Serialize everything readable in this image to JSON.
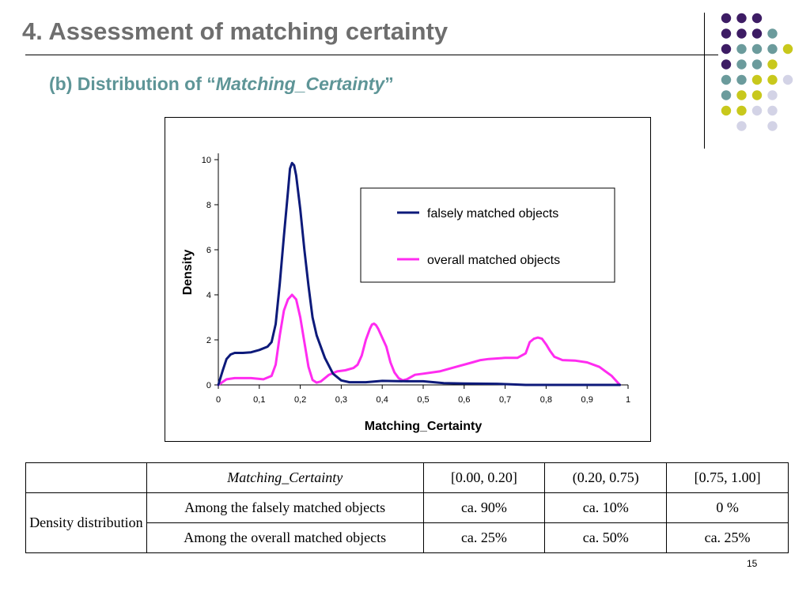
{
  "slide": {
    "title": "4. Assessment of matching certainty",
    "subtitle_prefix": "(b) Distribution of “",
    "subtitle_emphasis": "Matching_Certainty",
    "subtitle_suffix": "”",
    "page_number": "15"
  },
  "decoration": {
    "dot_colors": {
      "purple": "#3d1c64",
      "teal": "#6b9b9c",
      "yellow": "#c8c81c",
      "lavender": "#d3d3e6"
    },
    "dot_rows": [
      [
        "purple",
        "purple",
        "purple",
        "",
        ""
      ],
      [
        "purple",
        "purple",
        "purple",
        "teal",
        ""
      ],
      [
        "purple",
        "teal",
        "teal",
        "teal",
        "yellow"
      ],
      [
        "purple",
        "teal",
        "teal",
        "yellow",
        ""
      ],
      [
        "teal",
        "teal",
        "yellow",
        "yellow",
        "lavender"
      ],
      [
        "teal",
        "yellow",
        "yellow",
        "lavender",
        ""
      ],
      [
        "yellow",
        "yellow",
        "lavender",
        "lavender",
        ""
      ],
      [
        "",
        "lavender",
        "",
        "lavender",
        ""
      ]
    ]
  },
  "chart_data": {
    "type": "line",
    "title": "",
    "xlabel": "Matching_Certainty",
    "ylabel": "Density",
    "xlim": [
      0,
      1
    ],
    "ylim": [
      0,
      10
    ],
    "x_ticks": [
      0,
      0.1,
      0.2,
      0.3,
      0.4,
      0.5,
      0.6,
      0.7,
      0.8,
      0.9,
      1
    ],
    "x_tick_labels": [
      "0",
      "0,1",
      "0,2",
      "0,3",
      "0,4",
      "0,5",
      "0,6",
      "0,7",
      "0,8",
      "0,9",
      "1"
    ],
    "y_ticks": [
      0,
      2,
      4,
      6,
      8,
      10
    ],
    "y_tick_labels": [
      "0",
      "2",
      "4",
      "6",
      "8",
      "10"
    ],
    "grid": false,
    "legend_position": "top-right",
    "series": [
      {
        "name": "falsely matched objects",
        "color": "#0d1a7a",
        "points": [
          [
            0,
            0
          ],
          [
            0.01,
            0.6
          ],
          [
            0.02,
            1.15
          ],
          [
            0.03,
            1.35
          ],
          [
            0.04,
            1.42
          ],
          [
            0.06,
            1.42
          ],
          [
            0.08,
            1.45
          ],
          [
            0.1,
            1.55
          ],
          [
            0.12,
            1.7
          ],
          [
            0.13,
            1.9
          ],
          [
            0.14,
            2.7
          ],
          [
            0.15,
            4.5
          ],
          [
            0.16,
            6.6
          ],
          [
            0.17,
            8.6
          ],
          [
            0.175,
            9.6
          ],
          [
            0.18,
            9.85
          ],
          [
            0.185,
            9.75
          ],
          [
            0.19,
            9.3
          ],
          [
            0.2,
            7.8
          ],
          [
            0.21,
            6.0
          ],
          [
            0.22,
            4.4
          ],
          [
            0.23,
            3.0
          ],
          [
            0.24,
            2.2
          ],
          [
            0.26,
            1.2
          ],
          [
            0.28,
            0.5
          ],
          [
            0.3,
            0.2
          ],
          [
            0.32,
            0.12
          ],
          [
            0.36,
            0.12
          ],
          [
            0.4,
            0.18
          ],
          [
            0.46,
            0.16
          ],
          [
            0.5,
            0.16
          ],
          [
            0.55,
            0.08
          ],
          [
            0.6,
            0.06
          ],
          [
            0.68,
            0.05
          ],
          [
            0.72,
            0.02
          ],
          [
            0.75,
            0.0
          ],
          [
            0.98,
            0.0
          ]
        ]
      },
      {
        "name": "overall matched objects",
        "color": "#ff2cf0",
        "points": [
          [
            0,
            0
          ],
          [
            0.02,
            0.25
          ],
          [
            0.04,
            0.3
          ],
          [
            0.08,
            0.3
          ],
          [
            0.11,
            0.25
          ],
          [
            0.13,
            0.4
          ],
          [
            0.14,
            0.9
          ],
          [
            0.15,
            2.2
          ],
          [
            0.16,
            3.3
          ],
          [
            0.17,
            3.8
          ],
          [
            0.18,
            4.0
          ],
          [
            0.19,
            3.8
          ],
          [
            0.2,
            3.0
          ],
          [
            0.21,
            1.9
          ],
          [
            0.22,
            0.8
          ],
          [
            0.23,
            0.22
          ],
          [
            0.24,
            0.1
          ],
          [
            0.25,
            0.15
          ],
          [
            0.27,
            0.45
          ],
          [
            0.29,
            0.6
          ],
          [
            0.31,
            0.65
          ],
          [
            0.33,
            0.75
          ],
          [
            0.34,
            0.9
          ],
          [
            0.35,
            1.3
          ],
          [
            0.36,
            2.0
          ],
          [
            0.37,
            2.5
          ],
          [
            0.375,
            2.68
          ],
          [
            0.38,
            2.72
          ],
          [
            0.385,
            2.65
          ],
          [
            0.39,
            2.5
          ],
          [
            0.41,
            1.7
          ],
          [
            0.42,
            1.0
          ],
          [
            0.43,
            0.55
          ],
          [
            0.44,
            0.3
          ],
          [
            0.45,
            0.2
          ],
          [
            0.46,
            0.25
          ],
          [
            0.48,
            0.45
          ],
          [
            0.5,
            0.5
          ],
          [
            0.54,
            0.6
          ],
          [
            0.58,
            0.8
          ],
          [
            0.62,
            1.0
          ],
          [
            0.64,
            1.1
          ],
          [
            0.66,
            1.15
          ],
          [
            0.7,
            1.2
          ],
          [
            0.73,
            1.2
          ],
          [
            0.75,
            1.4
          ],
          [
            0.76,
            1.9
          ],
          [
            0.77,
            2.05
          ],
          [
            0.78,
            2.1
          ],
          [
            0.79,
            2.05
          ],
          [
            0.8,
            1.8
          ],
          [
            0.81,
            1.5
          ],
          [
            0.82,
            1.25
          ],
          [
            0.84,
            1.1
          ],
          [
            0.87,
            1.08
          ],
          [
            0.9,
            1.0
          ],
          [
            0.93,
            0.8
          ],
          [
            0.96,
            0.4
          ],
          [
            0.98,
            0.0
          ]
        ]
      }
    ]
  },
  "table": {
    "header": [
      "",
      "Matching_Certainty",
      "[0.00, 0.20]",
      "(0.20, 0.75)",
      "[0.75, 1.00]"
    ],
    "row_group_label": "Density distribution",
    "rows": [
      [
        "Among the falsely matched objects",
        "ca. 90%",
        "ca. 10%",
        "0 %"
      ],
      [
        "Among the overall matched objects",
        "ca. 25%",
        "ca. 50%",
        "ca. 25%"
      ]
    ]
  }
}
